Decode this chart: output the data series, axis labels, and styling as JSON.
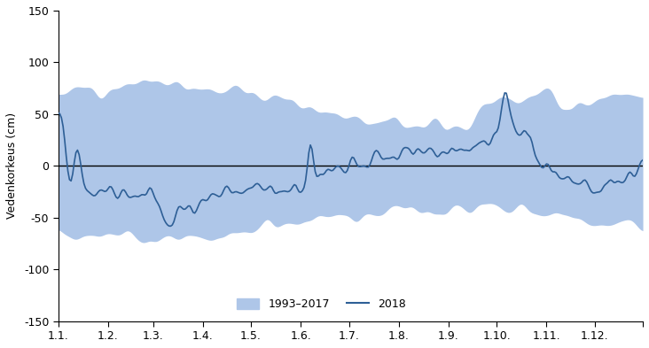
{
  "ylabel": "Vedenkorkeus (cm)",
  "ylim": [
    -150,
    150
  ],
  "yticks": [
    -150,
    -100,
    -50,
    0,
    50,
    100,
    150
  ],
  "xtick_labels": [
    "1.1.",
    "1.2.",
    "1.3.",
    "1.4.",
    "1.5.",
    "1.6.",
    "1.7.",
    "1.8.",
    "1.9.",
    "1.10.",
    "1.11.",
    "1.12.",
    ""
  ],
  "band_color": "#aec6e8",
  "line_color": "#2e5f96",
  "zero_line_color": "#000000",
  "legend_band_label": "1993–2017",
  "legend_line_label": "2018",
  "background_color": "#ffffff",
  "n_days": 365
}
